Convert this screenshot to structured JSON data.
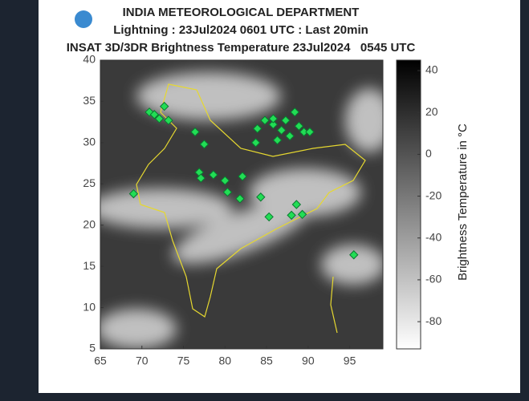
{
  "header": {
    "title": "INDIA METEOROLOGICAL DEPARTMENT",
    "subtitle": "Lightning : 23Jul2024 0601 UTC : Last 20min",
    "product": "INSAT 3D/3DR Brightness Temperature 23Jul2024   0545 UTC"
  },
  "chart_data": {
    "type": "scatter",
    "x": [
      70.9,
      71.5,
      72.1,
      72.7,
      73.2,
      76.4,
      77.5,
      76.9,
      77.1,
      78.6,
      80.0,
      80.3,
      82.1,
      81.8,
      84.3,
      85.3,
      88.0,
      89.3,
      88.6,
      69.0,
      95.5,
      83.9,
      83.7,
      84.8,
      85.8,
      86.8,
      87.3,
      87.8,
      88.4,
      88.9,
      89.5,
      90.2,
      86.3,
      85.8
    ],
    "values": [
      33.7,
      33.4,
      32.9,
      34.4,
      32.7,
      31.3,
      29.8,
      26.4,
      25.7,
      26.1,
      25.4,
      24.0,
      25.9,
      23.2,
      23.4,
      21.0,
      21.2,
      21.3,
      22.5,
      23.8,
      16.4,
      31.7,
      30.0,
      32.7,
      32.2,
      31.5,
      32.7,
      30.8,
      33.7,
      32.0,
      31.3,
      31.3,
      30.3,
      32.9
    ],
    "color": "#22dd55",
    "xlim": [
      65,
      99
    ],
    "ylim": [
      5,
      40
    ],
    "xticks": [
      65,
      70,
      75,
      80,
      85,
      90,
      95
    ],
    "yticks": [
      5,
      10,
      15,
      20,
      25,
      30,
      35,
      40
    ],
    "colorbar": {
      "label": "Brightness Temperature in °C",
      "lim": [
        -93,
        45
      ],
      "ticks": [
        40,
        20,
        0,
        -20,
        -40,
        -60,
        -80
      ]
    }
  }
}
